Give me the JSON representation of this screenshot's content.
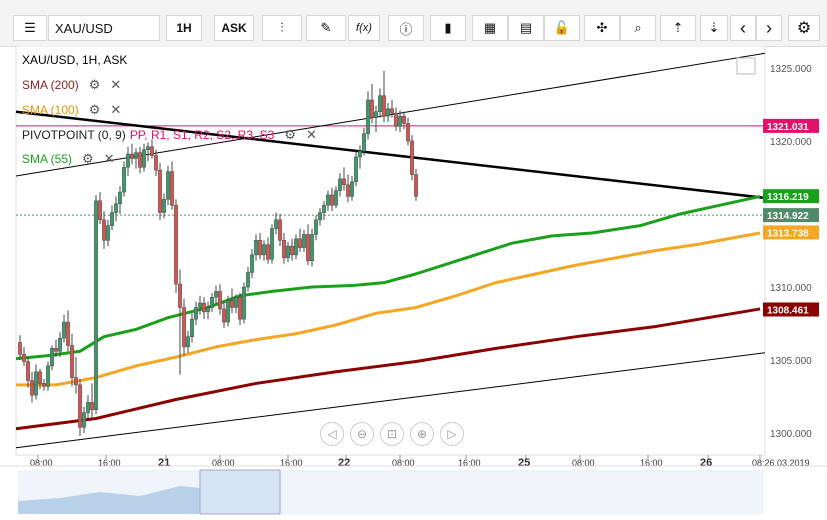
{
  "toolbar": {
    "menu_icon": "☰",
    "symbol": "XAU/USD",
    "timeframe": "1H",
    "price_side": "ASK",
    "candles_icon": "⫶",
    "draw_icon": "✎",
    "fx_label": "f(x)",
    "info_icon": "ⓘ",
    "bars_icon": "▮",
    "calendar_icon": "▦",
    "news_icon": "▤",
    "lock_icon": "🔓",
    "crosshair_icon": "✣",
    "zoom_icon": "⌕",
    "upload_icon": "⇡",
    "download_icon": "⇣",
    "prev_icon": "‹",
    "next_icon": "›",
    "settings_icon": "⚙"
  },
  "chart_title": "XAU/USD, 1H, ASK",
  "indicators": {
    "sma200": "SMA (200)",
    "sma100": "SMA (100)",
    "pivot_name": "PIVOTPOINT (0, 9)",
    "pivot_levels": [
      "PP",
      "R1",
      "S1",
      "R2",
      "S2",
      "R3",
      "S3"
    ],
    "sma55": "SMA (55)",
    "gear": "⚙",
    "close": "✕"
  },
  "colors": {
    "up": "#3d9a6a",
    "down": "#d9534f",
    "sma55": "#1aa01a",
    "sma100": "#f5a623",
    "sma200": "#8b0000",
    "pivot": "#e0106b",
    "trend": "#000000"
  },
  "nav_icons": [
    "◁",
    "⊖",
    "⊡",
    "⊕",
    "▷"
  ],
  "chart_data": {
    "type": "candlestick",
    "title": "XAU/USD, 1H, ASK",
    "y_ticks": [
      "1300.000",
      "1305.000",
      "1310.000",
      "1315.000",
      "1320.000",
      "1325.000"
    ],
    "ylim": [
      1298.5,
      1326.5
    ],
    "x_ticks": [
      "08:00",
      "16:00",
      "21",
      "08:00",
      "16:00",
      "22",
      "08:00",
      "16:00",
      "25",
      "08:00",
      "16:00",
      "26",
      "08:26.03.2019"
    ],
    "price_labels": [
      {
        "text": "1321.031",
        "value": 1321.031,
        "color": "#e0106b"
      },
      {
        "text": "1316.219",
        "value": 1316.219,
        "color": "#1aa01a"
      },
      {
        "text": "1314.922",
        "value": 1314.922,
        "color": "#4f8a6a"
      },
      {
        "text": "1313.738",
        "value": 1313.738,
        "color": "#f5a623"
      },
      {
        "text": "1308.461",
        "value": 1308.461,
        "color": "#8b0000"
      }
    ],
    "pivot_pp": 1321.031,
    "current_price": 1314.922,
    "sma55": [
      [
        0,
        1305.1
      ],
      [
        8,
        1305.3
      ],
      [
        16,
        1305.6
      ],
      [
        22,
        1306.6
      ],
      [
        30,
        1307.1
      ],
      [
        38,
        1307.9
      ],
      [
        48,
        1308.6
      ],
      [
        56,
        1309.4
      ],
      [
        64,
        1309.7
      ],
      [
        74,
        1310.0
      ],
      [
        84,
        1310.1
      ],
      [
        92,
        1310.3
      ],
      [
        100,
        1310.9
      ],
      [
        108,
        1311.6
      ],
      [
        116,
        1312.3
      ],
      [
        124,
        1313.0
      ],
      [
        134,
        1313.5
      ],
      [
        144,
        1313.7
      ],
      [
        156,
        1314.2
      ],
      [
        166,
        1315.0
      ],
      [
        176,
        1315.6
      ],
      [
        186,
        1316.2
      ]
    ],
    "sma100": [
      [
        0,
        1303.3
      ],
      [
        10,
        1303.3
      ],
      [
        20,
        1303.8
      ],
      [
        30,
        1304.6
      ],
      [
        40,
        1305.2
      ],
      [
        50,
        1305.9
      ],
      [
        60,
        1306.4
      ],
      [
        70,
        1306.8
      ],
      [
        80,
        1307.4
      ],
      [
        90,
        1308.2
      ],
      [
        100,
        1308.6
      ],
      [
        110,
        1309.4
      ],
      [
        120,
        1310.3
      ],
      [
        130,
        1310.9
      ],
      [
        140,
        1311.5
      ],
      [
        150,
        1312.0
      ],
      [
        160,
        1312.5
      ],
      [
        170,
        1312.9
      ],
      [
        180,
        1313.4
      ],
      [
        186,
        1313.7
      ]
    ],
    "sma200": [
      [
        0,
        1300.3
      ],
      [
        20,
        1301.0
      ],
      [
        40,
        1302.3
      ],
      [
        60,
        1303.4
      ],
      [
        80,
        1304.2
      ],
      [
        100,
        1304.9
      ],
      [
        120,
        1305.8
      ],
      [
        140,
        1306.6
      ],
      [
        160,
        1307.3
      ],
      [
        186,
        1308.5
      ]
    ],
    "trendlines": [
      {
        "from": [
          0,
          1299.0
        ],
        "to": [
          186,
          1305.5
        ],
        "color": "#000000",
        "width": 1
      },
      {
        "from": [
          0,
          1317.6
        ],
        "to": [
          186,
          1326.0
        ],
        "color": "#000000",
        "width": 1
      },
      {
        "from": [
          0,
          1322.0
        ],
        "to": [
          186,
          1316.1
        ],
        "color": "#000000",
        "width": 2.5
      }
    ],
    "candles": [
      [
        1306.2,
        1306.7,
        1305.0,
        1305.4
      ],
      [
        1305.4,
        1305.9,
        1304.6,
        1304.9
      ],
      [
        1304.9,
        1305.2,
        1303.1,
        1303.6
      ],
      [
        1303.6,
        1304.2,
        1302.1,
        1302.6
      ],
      [
        1302.6,
        1304.7,
        1302.3,
        1304.2
      ],
      [
        1304.2,
        1304.4,
        1303.0,
        1303.4
      ],
      [
        1303.4,
        1303.7,
        1302.9,
        1303.2
      ],
      [
        1303.2,
        1304.9,
        1302.9,
        1304.6
      ],
      [
        1304.6,
        1306.0,
        1304.3,
        1305.8
      ],
      [
        1305.8,
        1306.4,
        1305.2,
        1305.6
      ],
      [
        1305.6,
        1306.9,
        1305.2,
        1306.5
      ],
      [
        1306.5,
        1308.1,
        1306.2,
        1307.6
      ],
      [
        1307.6,
        1308.4,
        1305.6,
        1306.0
      ],
      [
        1306.0,
        1306.8,
        1303.2,
        1303.8
      ],
      [
        1303.8,
        1305.2,
        1302.7,
        1303.3
      ],
      [
        1303.3,
        1303.7,
        1299.8,
        1300.4
      ],
      [
        1300.4,
        1301.8,
        1300.0,
        1301.4
      ],
      [
        1301.4,
        1302.6,
        1301.0,
        1302.1
      ],
      [
        1302.1,
        1303.4,
        1301.0,
        1301.6
      ],
      [
        1301.6,
        1316.3,
        1301.3,
        1315.9
      ],
      [
        1315.9,
        1316.5,
        1314.3,
        1314.6
      ],
      [
        1314.6,
        1315.2,
        1312.6,
        1313.2
      ],
      [
        1313.2,
        1314.6,
        1312.8,
        1314.2
      ],
      [
        1314.2,
        1315.6,
        1313.9,
        1315.1
      ],
      [
        1315.1,
        1316.2,
        1314.5,
        1315.7
      ],
      [
        1315.7,
        1316.9,
        1315.0,
        1316.5
      ],
      [
        1316.5,
        1318.6,
        1316.2,
        1318.2
      ],
      [
        1318.2,
        1319.6,
        1317.6,
        1319.1
      ],
      [
        1319.1,
        1319.8,
        1318.4,
        1318.8
      ],
      [
        1318.8,
        1319.5,
        1318.1,
        1319.2
      ],
      [
        1319.2,
        1319.6,
        1317.8,
        1318.2
      ],
      [
        1318.2,
        1319.8,
        1317.9,
        1319.4
      ],
      [
        1319.4,
        1319.9,
        1318.6,
        1319.6
      ],
      [
        1319.6,
        1320.1,
        1318.8,
        1319.0
      ],
      [
        1319.0,
        1319.4,
        1317.6,
        1318.0
      ],
      [
        1318.0,
        1318.5,
        1314.6,
        1315.1
      ],
      [
        1315.1,
        1316.4,
        1314.7,
        1316.0
      ],
      [
        1316.0,
        1318.3,
        1315.6,
        1317.9
      ],
      [
        1317.9,
        1318.6,
        1315.3,
        1315.6
      ],
      [
        1315.6,
        1316.0,
        1309.6,
        1310.2
      ],
      [
        1310.2,
        1311.2,
        1304.0,
        1308.6
      ],
      [
        1308.6,
        1309.2,
        1305.3,
        1305.9
      ],
      [
        1305.9,
        1307.0,
        1305.5,
        1306.6
      ],
      [
        1306.6,
        1308.2,
        1306.2,
        1307.8
      ],
      [
        1307.8,
        1309.0,
        1307.4,
        1308.6
      ],
      [
        1308.6,
        1309.4,
        1308.1,
        1308.9
      ],
      [
        1308.9,
        1309.3,
        1307.8,
        1308.3
      ],
      [
        1308.3,
        1309.0,
        1307.8,
        1308.6
      ],
      [
        1308.6,
        1309.6,
        1308.3,
        1309.3
      ],
      [
        1309.3,
        1310.1,
        1308.8,
        1309.7
      ],
      [
        1309.7,
        1310.2,
        1308.1,
        1308.5
      ],
      [
        1308.5,
        1309.0,
        1307.2,
        1307.6
      ],
      [
        1307.6,
        1309.4,
        1307.3,
        1309.1
      ],
      [
        1309.1,
        1309.9,
        1308.2,
        1308.6
      ],
      [
        1308.6,
        1309.5,
        1308.2,
        1309.3
      ],
      [
        1309.3,
        1309.6,
        1307.4,
        1307.8
      ],
      [
        1307.8,
        1310.3,
        1307.5,
        1310.0
      ],
      [
        1310.0,
        1311.4,
        1309.7,
        1311.0
      ],
      [
        1311.0,
        1312.6,
        1310.6,
        1312.2
      ],
      [
        1312.2,
        1313.6,
        1311.8,
        1313.2
      ],
      [
        1313.2,
        1313.7,
        1311.9,
        1312.2
      ],
      [
        1312.2,
        1313.2,
        1311.8,
        1312.9
      ],
      [
        1312.9,
        1313.4,
        1311.6,
        1311.9
      ],
      [
        1311.9,
        1314.3,
        1311.6,
        1314.0
      ],
      [
        1314.0,
        1315.1,
        1313.6,
        1314.6
      ],
      [
        1314.6,
        1315.0,
        1312.8,
        1313.2
      ],
      [
        1313.2,
        1313.7,
        1311.6,
        1312.0
      ],
      [
        1312.0,
        1313.1,
        1311.7,
        1312.8
      ],
      [
        1312.8,
        1313.3,
        1311.8,
        1312.2
      ],
      [
        1312.2,
        1313.6,
        1311.9,
        1313.3
      ],
      [
        1313.3,
        1314.0,
        1312.4,
        1312.7
      ],
      [
        1312.7,
        1313.9,
        1312.4,
        1313.6
      ],
      [
        1313.6,
        1314.3,
        1311.5,
        1311.8
      ],
      [
        1311.8,
        1314.0,
        1311.4,
        1313.6
      ],
      [
        1313.6,
        1314.9,
        1313.2,
        1314.6
      ],
      [
        1314.6,
        1315.4,
        1314.2,
        1315.1
      ],
      [
        1315.1,
        1315.9,
        1314.6,
        1315.6
      ],
      [
        1315.6,
        1316.6,
        1315.2,
        1316.3
      ],
      [
        1316.3,
        1316.8,
        1315.2,
        1315.6
      ],
      [
        1315.6,
        1316.9,
        1315.4,
        1316.6
      ],
      [
        1316.6,
        1317.8,
        1316.2,
        1317.4
      ],
      [
        1317.4,
        1318.2,
        1316.6,
        1317.0
      ],
      [
        1317.0,
        1317.7,
        1315.8,
        1316.2
      ],
      [
        1316.2,
        1317.6,
        1315.9,
        1317.2
      ],
      [
        1317.2,
        1319.3,
        1316.9,
        1318.9
      ],
      [
        1318.9,
        1319.7,
        1318.1,
        1319.3
      ],
      [
        1319.3,
        1320.9,
        1319.0,
        1320.5
      ],
      [
        1320.5,
        1323.4,
        1320.1,
        1322.8
      ],
      [
        1322.8,
        1323.9,
        1321.2,
        1321.6
      ],
      [
        1321.6,
        1322.4,
        1320.6,
        1322.0
      ],
      [
        1322.0,
        1323.6,
        1321.6,
        1323.1
      ],
      [
        1323.1,
        1324.8,
        1321.3,
        1321.7
      ],
      [
        1321.7,
        1322.6,
        1321.3,
        1322.2
      ],
      [
        1322.2,
        1322.8,
        1321.6,
        1321.9
      ],
      [
        1321.9,
        1322.3,
        1320.7,
        1321.0
      ],
      [
        1321.0,
        1322.1,
        1320.6,
        1321.7
      ],
      [
        1321.7,
        1322.0,
        1320.8,
        1321.2
      ],
      [
        1321.2,
        1321.6,
        1319.7,
        1320.0
      ],
      [
        1320.0,
        1320.4,
        1317.3,
        1317.7
      ],
      [
        1317.7,
        1318.1,
        1315.9,
        1316.2
      ]
    ]
  }
}
